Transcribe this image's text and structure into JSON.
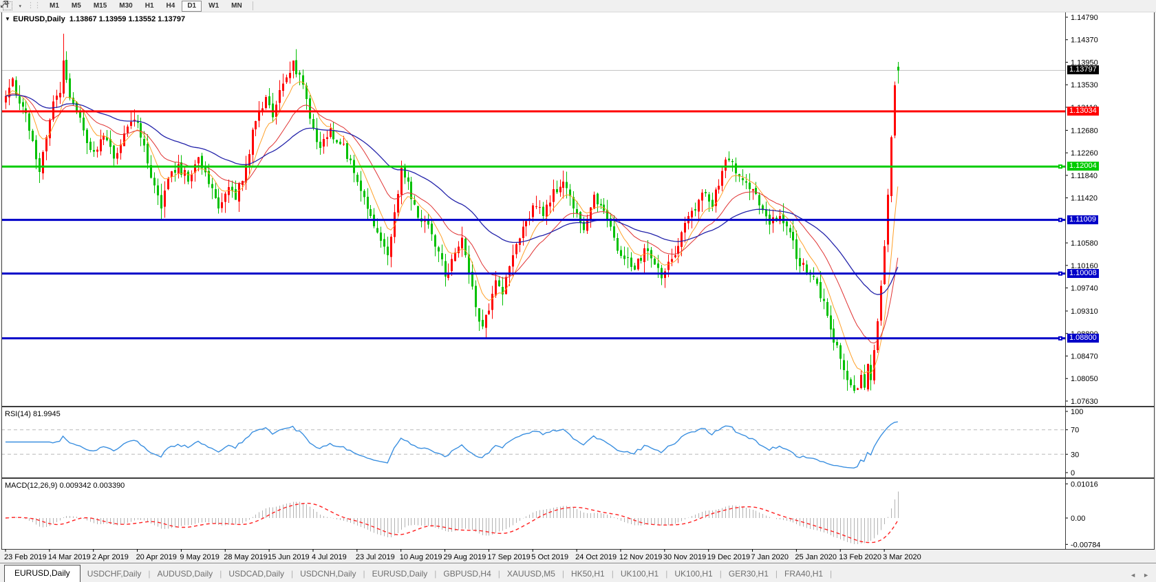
{
  "toolbar": {
    "text_tool_glyph": "T",
    "cursor_tool": "arrows-tool",
    "dropdown_caret": "▾",
    "timeframes": [
      "M1",
      "M5",
      "M15",
      "M30",
      "H1",
      "H4",
      "D1",
      "W1",
      "MN"
    ],
    "active_timeframe": "D1"
  },
  "chart": {
    "title_marker": "▼",
    "symbol": "EURUSD,Daily",
    "quote_ohlc": "1.13867 1.13959 1.13552 1.13797",
    "ohlc": {
      "open": 1.13867,
      "high": 1.13959,
      "low": 1.13552,
      "close": 1.13797
    },
    "current_price": {
      "label": "1.13797",
      "value": 1.13797,
      "bg": "#000000",
      "fg": "#ffffff",
      "line_color": "#c0c0c0"
    },
    "price_ticks": [
      "1.14790",
      "1.14370",
      "1.13950",
      "1.13530",
      "1.13110",
      "1.12680",
      "1.12260",
      "1.11840",
      "1.11420",
      "1.10580",
      "1.10160",
      "1.09740",
      "1.09310",
      "1.08890",
      "1.08470",
      "1.08050",
      "1.07630"
    ],
    "hlines": [
      {
        "label": "1.13034",
        "value": 1.13034,
        "color": "#ff0000",
        "thickness": 3,
        "handle": false
      },
      {
        "label": "1.12004",
        "value": 1.12004,
        "color": "#00cc00",
        "thickness": 3,
        "handle": true
      },
      {
        "label": "1.11009",
        "value": 1.11009,
        "color": "#0000c8",
        "thickness": 3,
        "handle": true
      },
      {
        "label": "1.10008",
        "value": 1.10008,
        "color": "#0000c8",
        "thickness": 3,
        "handle": true
      },
      {
        "label": "1.08800",
        "value": 1.088,
        "color": "#0000c8",
        "thickness": 3,
        "handle": true
      }
    ],
    "date_labels": [
      "23 Feb 2019",
      "14 Mar 2019",
      "2 Apr 2019",
      "20 Apr 2019",
      "9 May 2019",
      "28 May 2019",
      "15 Jun 2019",
      "4 Jul 2019",
      "23 Jul 2019",
      "10 Aug 2019",
      "29 Aug 2019",
      "17 Sep 2019",
      "5 Oct 2019",
      "24 Oct 2019",
      "12 Nov 2019",
      "30 Nov 2019",
      "19 Dec 2019",
      "7 Jan 2020",
      "25 Jan 2020",
      "13 Feb 2020",
      "3 Mar 2020"
    ],
    "colors": {
      "bull": "#ff0000",
      "bear": "#00c000",
      "ma_fast": "#ffa028",
      "ma_mid": "#e03232",
      "ma_slow": "#2323aa",
      "panel_bg": "#ffffff",
      "frame": "#3c3c3c"
    },
    "series": {
      "anchors": [
        [
          0,
          1.1332
        ],
        [
          2,
          1.1365
        ],
        [
          4,
          1.1318
        ],
        [
          6,
          1.13
        ],
        [
          8,
          1.1248
        ],
        [
          10,
          1.119
        ],
        [
          12,
          1.1255
        ],
        [
          14,
          1.1322
        ],
        [
          16,
          1.1338
        ],
        [
          17,
          1.1398
        ],
        [
          18,
          1.1362
        ],
        [
          20,
          1.1318
        ],
        [
          23,
          1.1268
        ],
        [
          26,
          1.1228
        ],
        [
          29,
          1.1258
        ],
        [
          32,
          1.1215
        ],
        [
          35,
          1.1262
        ],
        [
          38,
          1.1288
        ],
        [
          41,
          1.124
        ],
        [
          44,
          1.1165
        ],
        [
          46,
          1.1122
        ],
        [
          48,
          1.1178
        ],
        [
          51,
          1.1205
        ],
        [
          54,
          1.1172
        ],
        [
          57,
          1.1218
        ],
        [
          60,
          1.1168
        ],
        [
          63,
          1.1122
        ],
        [
          66,
          1.1162
        ],
        [
          68,
          1.1138
        ],
        [
          71,
          1.1205
        ],
        [
          74,
          1.1285
        ],
        [
          77,
          1.133
        ],
        [
          79,
          1.1292
        ],
        [
          82,
          1.1355
        ],
        [
          85,
          1.1398
        ],
        [
          87,
          1.1372
        ],
        [
          90,
          1.129
        ],
        [
          93,
          1.1235
        ],
        [
          96,
          1.1272
        ],
        [
          99,
          1.1242
        ],
        [
          102,
          1.1212
        ],
        [
          105,
          1.1155
        ],
        [
          108,
          1.1108
        ],
        [
          111,
          1.1062
        ],
        [
          113,
          1.1035
        ],
        [
          115,
          1.1115
        ],
        [
          117,
          1.1198
        ],
        [
          119,
          1.1172
        ],
        [
          122,
          1.1105
        ],
        [
          125,
          1.1092
        ],
        [
          128,
          1.1042
        ],
        [
          130,
          1.0995
        ],
        [
          133,
          1.104
        ],
        [
          135,
          1.1068
        ],
        [
          137,
          1.1002
        ],
        [
          139,
          1.0938
        ],
        [
          141,
          1.0902
        ],
        [
          143,
          1.0932
        ],
        [
          145,
          1.0988
        ],
        [
          147,
          1.0962
        ],
        [
          150,
          1.1035
        ],
        [
          153,
          1.1088
        ],
        [
          156,
          1.1128
        ],
        [
          159,
          1.1108
        ],
        [
          162,
          1.1158
        ],
        [
          165,
          1.1172
        ],
        [
          168,
          1.1122
        ],
        [
          171,
          1.1082
        ],
        [
          174,
          1.1148
        ],
        [
          177,
          1.1118
        ],
        [
          180,
          1.1068
        ],
        [
          183,
          1.1028
        ],
        [
          186,
          1.1008
        ],
        [
          189,
          1.1048
        ],
        [
          192,
          1.1018
        ],
        [
          194,
          1.0992
        ],
        [
          197,
          1.1028
        ],
        [
          200,
          1.1078
        ],
        [
          203,
          1.1118
        ],
        [
          206,
          1.1152
        ],
        [
          209,
          1.1125
        ],
        [
          212,
          1.1192
        ],
        [
          214,
          1.1212
        ],
        [
          217,
          1.1182
        ],
        [
          220,
          1.1158
        ],
        [
          223,
          1.1128
        ],
        [
          226,
          1.1092
        ],
        [
          229,
          1.1108
        ],
        [
          232,
          1.1078
        ],
        [
          234,
          1.1028
        ],
        [
          237,
          1.1002
        ],
        [
          240,
          1.0982
        ],
        [
          243,
          1.0922
        ],
        [
          245,
          1.0872
        ],
        [
          247,
          1.0842
        ],
        [
          249,
          1.0802
        ],
        [
          251,
          1.0782
        ],
        [
          253,
          1.0812
        ],
        [
          254,
          1.0788
        ],
        [
          255,
          1.0832
        ],
        [
          256,
          1.0802
        ],
        [
          257,
          1.0858
        ],
        [
          258,
          1.0912
        ],
        [
          259,
          1.0978
        ],
        [
          260,
          1.1052
        ],
        [
          261,
          1.1148
        ],
        [
          262,
          1.1255
        ],
        [
          263,
          1.1352
        ],
        [
          264,
          1.13797
        ]
      ],
      "spikes": [
        {
          "day": 17,
          "high": 1.1448
        },
        {
          "day": 251,
          "low": 1.0778
        }
      ]
    }
  },
  "rsi": {
    "label": "RSI(14)",
    "value": "81.9945",
    "period": 14,
    "ticks": [
      {
        "label": "100",
        "value": 100
      },
      {
        "label": "70",
        "value": 70
      },
      {
        "label": "30",
        "value": 30
      },
      {
        "label": "0",
        "value": 0
      }
    ],
    "levels": [
      70,
      30
    ],
    "line_color": "#3a8fe0",
    "level_color": "#b9b9b9"
  },
  "macd": {
    "label": "MACD(12,26,9)",
    "values": "0.009342 0.003390",
    "fast": 12,
    "slow": 26,
    "signal": 9,
    "ticks": [
      {
        "label": "0.01016",
        "value": 0.01016
      },
      {
        "label": "0.00",
        "value": 0
      },
      {
        "label": "-0.00784",
        "value": -0.00784
      }
    ],
    "histogram_color": "#b2b2b2",
    "signal_color": "#ff2020"
  },
  "tabs": {
    "items": [
      "EURUSD,Daily",
      "USDCHF,Daily",
      "AUDUSD,Daily",
      "USDCAD,Daily",
      "USDCNH,Daily",
      "EURUSD,Daily",
      "GBPUSD,H4",
      "XAUUSD,M5",
      "HK50,H1",
      "UK100,H1",
      "UK100,H1",
      "GER30,H1",
      "FRA40,H1"
    ],
    "active_index": 0,
    "scroll_left": "◄",
    "scroll_right": "►"
  }
}
